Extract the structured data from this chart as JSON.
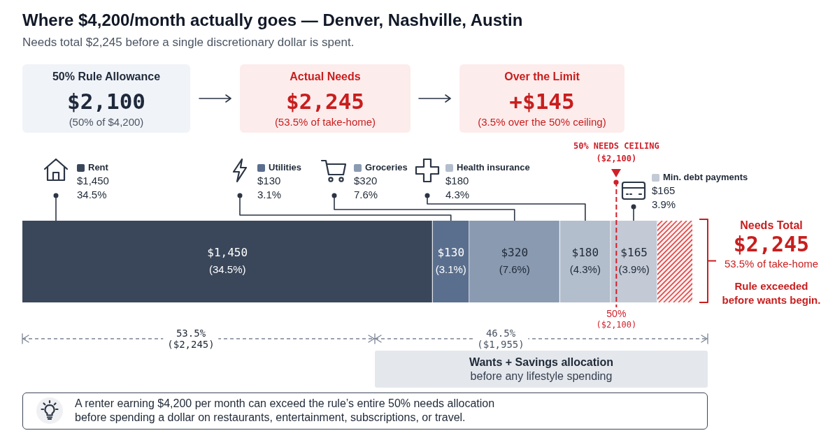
{
  "chart_data": {
    "type": "bar",
    "title": "Where $4,200/month actually goes — Denver, Nashville, Austin",
    "subtitle": "Needs total $2,245 before a single discretionary dollar is spent.",
    "orientation": "horizontal",
    "stacked": true,
    "tick_labels": false,
    "legend": "top",
    "categories": [
      null
    ],
    "series": [
      {
        "name": "Rent",
        "color": "#3a475a",
        "values": [
          1450
        ],
        "value_labels": [
          "$1,450\n(34.5%)"
        ]
      },
      {
        "name": "Utilities",
        "color": "#5a6f8e",
        "values": [
          130
        ],
        "value_labels": [
          "$130\n(3.1%)"
        ]
      },
      {
        "name": "Groceries",
        "color": "#8a9ab1",
        "values": [
          320
        ],
        "value_labels": [
          "$320\n(7.6%)"
        ]
      },
      {
        "name": "Health insurance",
        "color": "#b3becd",
        "values": [
          180
        ],
        "value_labels": [
          "$180\n(4.3%)"
        ]
      },
      {
        "name": "Min. debt payments",
        "color": "#c3cad6",
        "values": [
          165
        ],
        "value_labels": [
          "$165\n(3.9%)"
        ]
      }
    ],
    "ref_lines": [
      {
        "axis": "x",
        "value": 2100,
        "label": "50% NEEDS CEILING\n($2,100)",
        "color": "#d0202a",
        "line_style": "dashed"
      }
    ],
    "annotations": [
      "50% Rule Allowance",
      "$2,100",
      "(50% of $4,200)",
      "Actual Needs",
      "$2,245",
      "(53.5% of take-home)",
      "Over the Limit",
      "+$145",
      "(3.5% over the 50% ceiling)",
      "$1,450\n34.5%",
      "$130\n3.1%",
      "$320\n7.6%",
      "$180\n4.3%",
      "$165\n3.9%",
      "50%\n($2,100)",
      "Needs Total",
      "$2,245",
      "53.5% of take-home",
      "Rule exceeded\nbefore wants begin.",
      "53.5%\n($2,245)",
      "46.5%\n($1,955)",
      "Wants + Savings allocation",
      "before any lifestyle spending",
      "A renter earning $4,200 per month can exceed the rule’s entire 50% needs allocation\nbefore spending a dollar on restaurants, entertainment, subscriptions, or travel."
    ]
  }
}
